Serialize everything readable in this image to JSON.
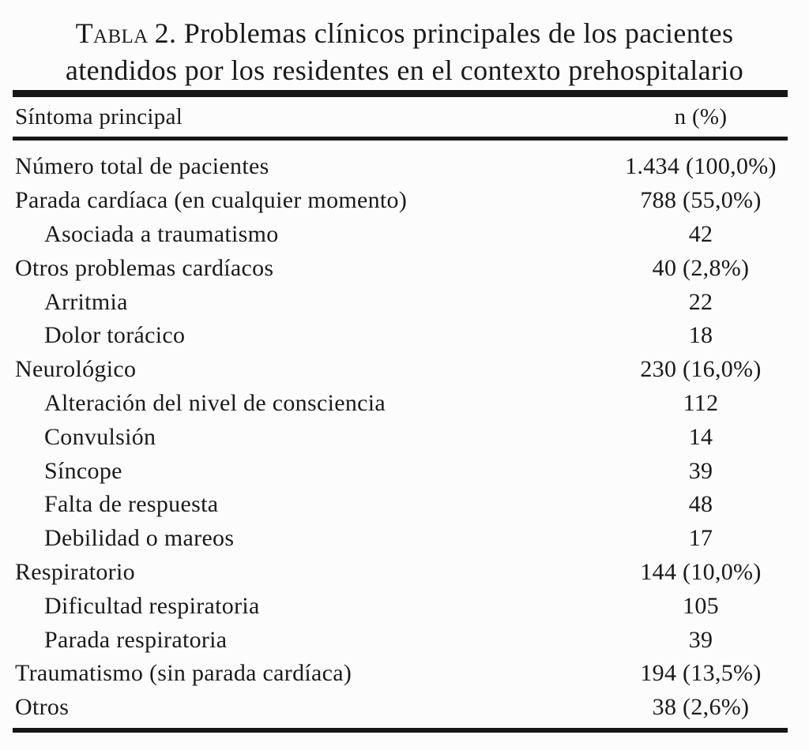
{
  "title": {
    "prefix_smallcaps": "Tabla",
    "line1_rest": "2. Problemas clínicos principales de los pacientes",
    "line2": "atendidos por los residentes en el contexto prehospitalario"
  },
  "table": {
    "header": {
      "symptom": "Síntoma principal",
      "n": "n (%)"
    },
    "rows": [
      {
        "label": "Número total de pacientes",
        "value": "1.434 (100,0%)",
        "indent": false
      },
      {
        "label": "Parada cardíaca (en cualquier momento)",
        "value": "788 (55,0%)",
        "indent": false
      },
      {
        "label": "Asociada a traumatismo",
        "value": "42",
        "indent": true
      },
      {
        "label": "Otros problemas cardíacos",
        "value": "40 (2,8%)",
        "indent": false
      },
      {
        "label": "Arritmia",
        "value": "22",
        "indent": true
      },
      {
        "label": "Dolor torácico",
        "value": "18",
        "indent": true
      },
      {
        "label": "Neurológico",
        "value": "230 (16,0%)",
        "indent": false
      },
      {
        "label": "Alteración del nivel de consciencia",
        "value": "112",
        "indent": true
      },
      {
        "label": "Convulsión",
        "value": "14",
        "indent": true
      },
      {
        "label": "Síncope",
        "value": "39",
        "indent": true
      },
      {
        "label": "Falta de respuesta",
        "value": "48",
        "indent": true
      },
      {
        "label": "Debilidad o mareos",
        "value": "17",
        "indent": true
      },
      {
        "label": "Respiratorio",
        "value": "144 (10,0%)",
        "indent": false
      },
      {
        "label": "Dificultad respiratoria",
        "value": "105",
        "indent": true
      },
      {
        "label": "Parada respiratoria",
        "value": "39",
        "indent": true
      },
      {
        "label": "Traumatismo (sin parada cardíaca)",
        "value": "194 (13,5%)",
        "indent": false
      },
      {
        "label": "Otros",
        "value": "38 (2,6%)",
        "indent": false
      }
    ]
  },
  "colors": {
    "text": "#1a1a1a",
    "rule": "#161616",
    "background": "#fcfcfc"
  }
}
